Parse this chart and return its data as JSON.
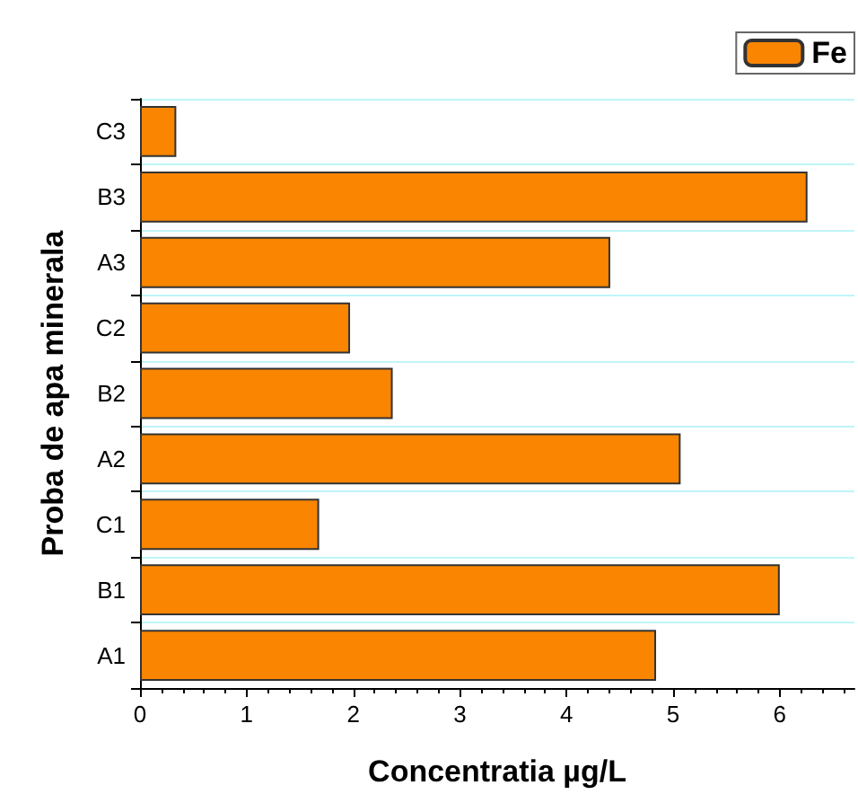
{
  "chart_data": {
    "type": "bar",
    "orientation": "horizontal",
    "categories": [
      "C3",
      "B3",
      "A3",
      "C2",
      "B2",
      "A2",
      "C1",
      "B1",
      "A1"
    ],
    "series": [
      {
        "name": "Fe",
        "color": "#f98500",
        "values": [
          0.34,
          6.26,
          4.41,
          1.97,
          2.37,
          5.07,
          1.68,
          6.0,
          4.84
        ]
      }
    ],
    "xlabel": "Concentratia µg/L",
    "ylabel": "Proba de apa minerala",
    "xlim": [
      0,
      6.7
    ],
    "xticks": [
      0,
      1,
      2,
      3,
      4,
      5,
      6
    ],
    "grid": "y",
    "legend": "top right"
  }
}
